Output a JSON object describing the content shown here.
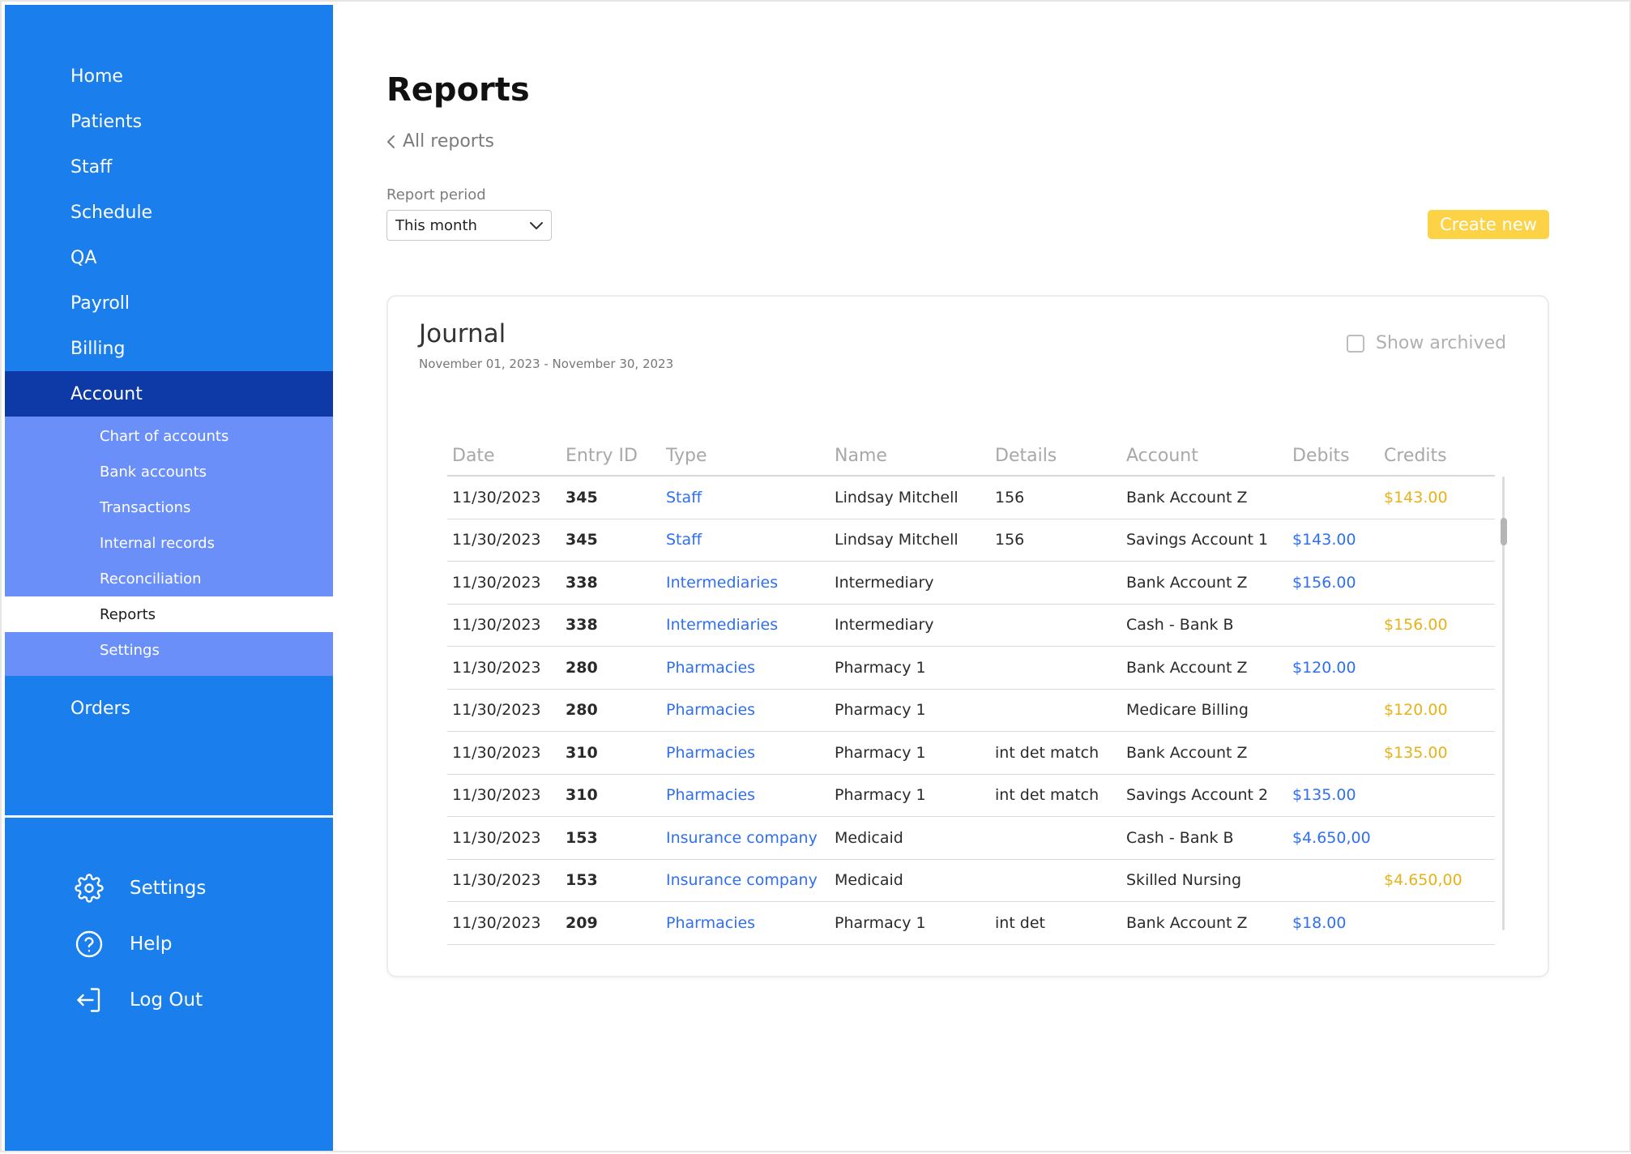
{
  "sidebar": {
    "items": [
      {
        "label": "Home"
      },
      {
        "label": "Patients"
      },
      {
        "label": "Staff"
      },
      {
        "label": "Schedule"
      },
      {
        "label": "QA"
      },
      {
        "label": "Payroll"
      },
      {
        "label": "Billing"
      },
      {
        "label": "Account"
      }
    ],
    "subitems": [
      {
        "label": "Chart of accounts"
      },
      {
        "label": "Bank accounts"
      },
      {
        "label": "Transactions"
      },
      {
        "label": "Internal records"
      },
      {
        "label": "Reconciliation"
      },
      {
        "label": "Reports"
      },
      {
        "label": "Settings"
      }
    ],
    "orders_label": "Orders",
    "bottom": {
      "settings_label": "Settings",
      "help_label": "Help",
      "logout_label": "Log Out"
    },
    "colors": {
      "background": "#1a7eec",
      "active": "#0d3aa7",
      "subnav": "#6b8ff8"
    }
  },
  "main": {
    "title": "Reports",
    "back_label": "All reports",
    "period_label": "Report period",
    "period_value": "This month",
    "create_label": "Create new",
    "accent": "#fcd246"
  },
  "journal": {
    "title": "Journal",
    "range": "November 01, 2023 - November 30, 2023",
    "show_archived_label": "Show archived",
    "columns": [
      "Date",
      "Entry ID",
      "Type",
      "Name",
      "Details",
      "Account",
      "Debits",
      "Credits"
    ],
    "rows": [
      {
        "date": "11/30/2023",
        "id": "345",
        "type": "Staff",
        "name": "Lindsay Mitchell",
        "details": "156",
        "account": "Bank Account Z",
        "debit": "",
        "credit": "$143.00"
      },
      {
        "date": "11/30/2023",
        "id": "345",
        "type": "Staff",
        "name": "Lindsay Mitchell",
        "details": "156",
        "account": "Savings Account 1",
        "debit": "$143.00",
        "credit": ""
      },
      {
        "date": "11/30/2023",
        "id": "338",
        "type": "Intermediaries",
        "name": "Intermediary",
        "details": "",
        "account": "Bank Account Z",
        "debit": "$156.00",
        "credit": ""
      },
      {
        "date": "11/30/2023",
        "id": "338",
        "type": "Intermediaries",
        "name": "Intermediary",
        "details": "",
        "account": "Cash - Bank B",
        "debit": "",
        "credit": "$156.00"
      },
      {
        "date": "11/30/2023",
        "id": "280",
        "type": "Pharmacies",
        "name": "Pharmacy 1",
        "details": "",
        "account": "Bank Account Z",
        "debit": "$120.00",
        "credit": ""
      },
      {
        "date": "11/30/2023",
        "id": "280",
        "type": "Pharmacies",
        "name": "Pharmacy 1",
        "details": "",
        "account": "Medicare Billing",
        "debit": "",
        "credit": "$120.00"
      },
      {
        "date": "11/30/2023",
        "id": "310",
        "type": "Pharmacies",
        "name": "Pharmacy 1",
        "details": "int det match",
        "account": "Bank Account Z",
        "debit": "",
        "credit": "$135.00"
      },
      {
        "date": "11/30/2023",
        "id": "310",
        "type": "Pharmacies",
        "name": "Pharmacy 1",
        "details": "int det match",
        "account": "Savings Account 2",
        "debit": "$135.00",
        "credit": ""
      },
      {
        "date": "11/30/2023",
        "id": "153",
        "type": "Insurance company",
        "name": "Medicaid",
        "details": "",
        "account": "Cash - Bank B",
        "debit": "$4.650,00",
        "credit": ""
      },
      {
        "date": "11/30/2023",
        "id": "153",
        "type": "Insurance company",
        "name": "Medicaid",
        "details": "",
        "account": "Skilled Nursing",
        "debit": "",
        "credit": "$4.650,00"
      },
      {
        "date": "11/30/2023",
        "id": "209",
        "type": "Pharmacies",
        "name": "Pharmacy 1",
        "details": "int det",
        "account": "Bank Account Z",
        "debit": "$18.00",
        "credit": ""
      }
    ],
    "colors": {
      "link": "#2f6ff0",
      "credit": "#e6b21a"
    }
  }
}
